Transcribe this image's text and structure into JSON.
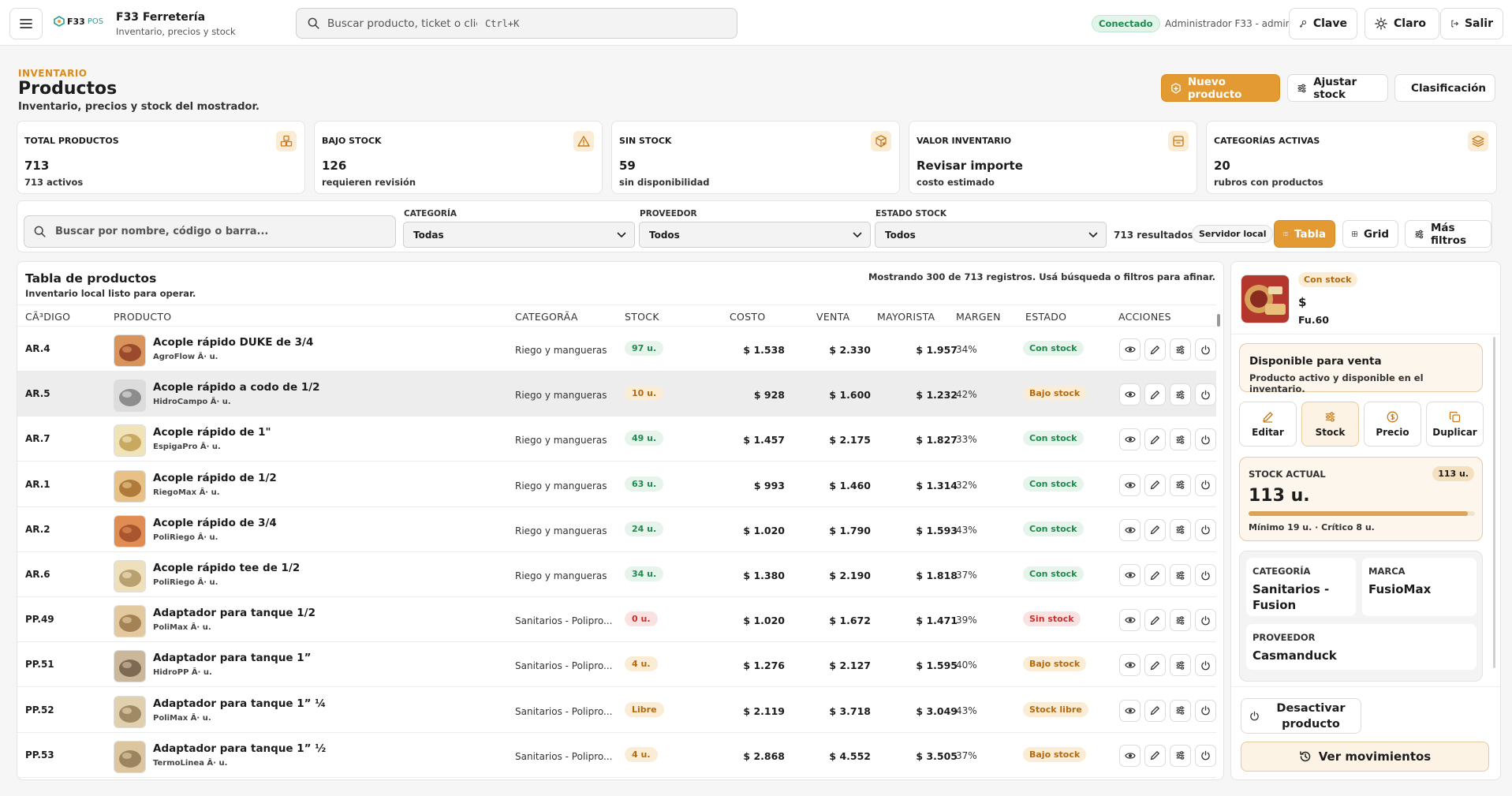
{
  "topbar": {
    "logo_text": "F33",
    "logo_suffix": "POS",
    "app_title": "F33 Ferretería",
    "app_subtitle": "Inventario, precios y stock",
    "search_placeholder": "Buscar producto, ticket o cliente",
    "search_shortcut": "Ctrl+K",
    "status": "Conectado",
    "user": "Administrador F33 - admin",
    "btn_clave": "Clave",
    "btn_theme": "Claro",
    "btn_exit": "Salir"
  },
  "header": {
    "eyebrow": "INVENTARIO",
    "title": "Productos",
    "subtitle": "Inventario, precios y stock del mostrador.",
    "btn_new": "Nuevo producto",
    "btn_adjust": "Ajustar stock",
    "btn_class": "Clasificación"
  },
  "kpis": [
    {
      "title": "TOTAL PRODUCTOS",
      "value": "713",
      "sub": "713 activos"
    },
    {
      "title": "BAJO STOCK",
      "value": "126",
      "sub": "requieren revisión"
    },
    {
      "title": "SIN STOCK",
      "value": "59",
      "sub": "sin disponibilidad"
    },
    {
      "title": "VALOR INVENTARIO",
      "value": "Revisar importe",
      "sub": "costo estimado"
    },
    {
      "title": "CATEGORÍAS ACTIVAS",
      "value": "20",
      "sub": "rubros con productos"
    }
  ],
  "filters": {
    "search_placeholder": "Buscar por nombre, código o barra...",
    "category_label": "CATEGORÍA",
    "category_value": "Todas",
    "provider_label": "PROVEEDOR",
    "provider_value": "Todos",
    "stock_label": "ESTADO STOCK",
    "stock_value": "Todos",
    "results": "713 resultados",
    "server_chip": "Servidor local",
    "btn_table": "Tabla",
    "btn_grid": "Grid",
    "btn_more": "Más filtros"
  },
  "table": {
    "title": "Tabla de productos",
    "subtitle": "Inventario local listo para operar.",
    "count_text": "Mostrando 300 de 713 registros. Usá búsqueda o filtros para afinar.",
    "headers": {
      "code": "CÃ³DIGO",
      "product": "PRODUCTO",
      "category": "CATEGORÃA",
      "stock": "STOCK",
      "cost": "COSTO",
      "sale": "VENTA",
      "wholesale": "MAYORISTA",
      "margin": "MARGEN",
      "status": "ESTADO",
      "actions": "ACCIONES"
    },
    "rows": [
      {
        "code": "AR.4",
        "name": "Acople rápido DUKE de 3/4",
        "brand": "AgroFlow Â· u.",
        "category": "Riego y mangueras",
        "stock": "97 u.",
        "stock_kind": "ok",
        "cost": "$ 1.538",
        "sale": "$ 2.330",
        "wholesale": "$ 1.957",
        "margin": "34%",
        "status": "Con stock",
        "status_kind": "ok"
      },
      {
        "code": "AR.5",
        "name": "Acople rápido a codo de 1/2",
        "brand": "HidroCampo Â· u.",
        "category": "Riego y mangueras",
        "stock": "10 u.",
        "stock_kind": "low",
        "cost": "$ 928",
        "sale": "$ 1.600",
        "wholesale": "$ 1.232",
        "margin": "42%",
        "status": "Bajo stock",
        "status_kind": "low"
      },
      {
        "code": "AR.7",
        "name": "Acople rápido de 1\"",
        "brand": "EspigaPro Â· u.",
        "category": "Riego y mangueras",
        "stock": "49 u.",
        "stock_kind": "ok",
        "cost": "$ 1.457",
        "sale": "$ 2.175",
        "wholesale": "$ 1.827",
        "margin": "33%",
        "status": "Con stock",
        "status_kind": "ok"
      },
      {
        "code": "AR.1",
        "name": "Acople rápido de 1/2",
        "brand": "RiegoMax Â· u.",
        "category": "Riego y mangueras",
        "stock": "63 u.",
        "stock_kind": "ok",
        "cost": "$ 993",
        "sale": "$ 1.460",
        "wholesale": "$ 1.314",
        "margin": "32%",
        "status": "Con stock",
        "status_kind": "ok"
      },
      {
        "code": "AR.2",
        "name": "Acople rápido de 3/4",
        "brand": "PoliRiego Â· u.",
        "category": "Riego y mangueras",
        "stock": "24 u.",
        "stock_kind": "ok",
        "cost": "$ 1.020",
        "sale": "$ 1.790",
        "wholesale": "$ 1.593",
        "margin": "43%",
        "status": "Con stock",
        "status_kind": "ok"
      },
      {
        "code": "AR.6",
        "name": "Acople rápido tee de 1/2",
        "brand": "PoliRiego Â· u.",
        "category": "Riego y mangueras",
        "stock": "34 u.",
        "stock_kind": "ok",
        "cost": "$ 1.380",
        "sale": "$ 2.190",
        "wholesale": "$ 1.818",
        "margin": "37%",
        "status": "Con stock",
        "status_kind": "ok"
      },
      {
        "code": "PP.49",
        "name": "Adaptador para tanque 1/2",
        "brand": "PoliMax Â· u.",
        "category": "Sanitarios - Polipro...",
        "stock": "0 u.",
        "stock_kind": "out",
        "cost": "$ 1.020",
        "sale": "$ 1.672",
        "wholesale": "$ 1.471",
        "margin": "39%",
        "status": "Sin stock",
        "status_kind": "out"
      },
      {
        "code": "PP.51",
        "name": "Adaptador para tanque 1”",
        "brand": "HidroPP Â· u.",
        "category": "Sanitarios - Polipro...",
        "stock": "4 u.",
        "stock_kind": "low",
        "cost": "$ 1.276",
        "sale": "$ 2.127",
        "wholesale": "$ 1.595",
        "margin": "40%",
        "status": "Bajo stock",
        "status_kind": "low"
      },
      {
        "code": "PP.52",
        "name": "Adaptador para tanque 1” ¼",
        "brand": "PoliMax Â· u.",
        "category": "Sanitarios - Polipro...",
        "stock": "Libre",
        "stock_kind": "low",
        "cost": "$ 2.119",
        "sale": "$ 3.718",
        "wholesale": "$ 3.049",
        "margin": "43%",
        "status": "Stock libre",
        "status_kind": "low"
      },
      {
        "code": "PP.53",
        "name": "Adaptador para tanque 1” ½",
        "brand": "TermoLinea Â· u.",
        "category": "Sanitarios - Polipro...",
        "stock": "4 u.",
        "stock_kind": "low",
        "cost": "$ 2.868",
        "sale": "$ 4.552",
        "wholesale": "$ 3.505",
        "margin": "37%",
        "status": "Bajo stock",
        "status_kind": "low"
      }
    ]
  },
  "side": {
    "badge": "Con stock",
    "price": "$",
    "unit": "Fu.60",
    "avail_title": "Disponible para venta",
    "avail_sub": "Producto activo y disponible en el inventario.",
    "actions": [
      "Editar",
      "Stock",
      "Precio",
      "Duplicar"
    ],
    "stock_label": "STOCK ACTUAL",
    "stock_value": "113 u.",
    "stock_badge": "113 u.",
    "stock_level": 0.97,
    "stock_note": "Mínimo 19 u. · Crítico 8 u.",
    "category_label": "CATEGORÍA",
    "category_value": "Sanitarios - Fusion",
    "brand_label": "MARCA",
    "brand_value": "FusioMax",
    "provider_label": "PROVEEDOR",
    "provider_value": "Casmanduck",
    "btn_deactivate": "Desactivar producto",
    "btn_movements": "Ver movimientos"
  },
  "colors": {
    "accent": "#e49a33",
    "ok": "#1e8a4e",
    "low": "#b26a10",
    "out": "#c9302c"
  }
}
